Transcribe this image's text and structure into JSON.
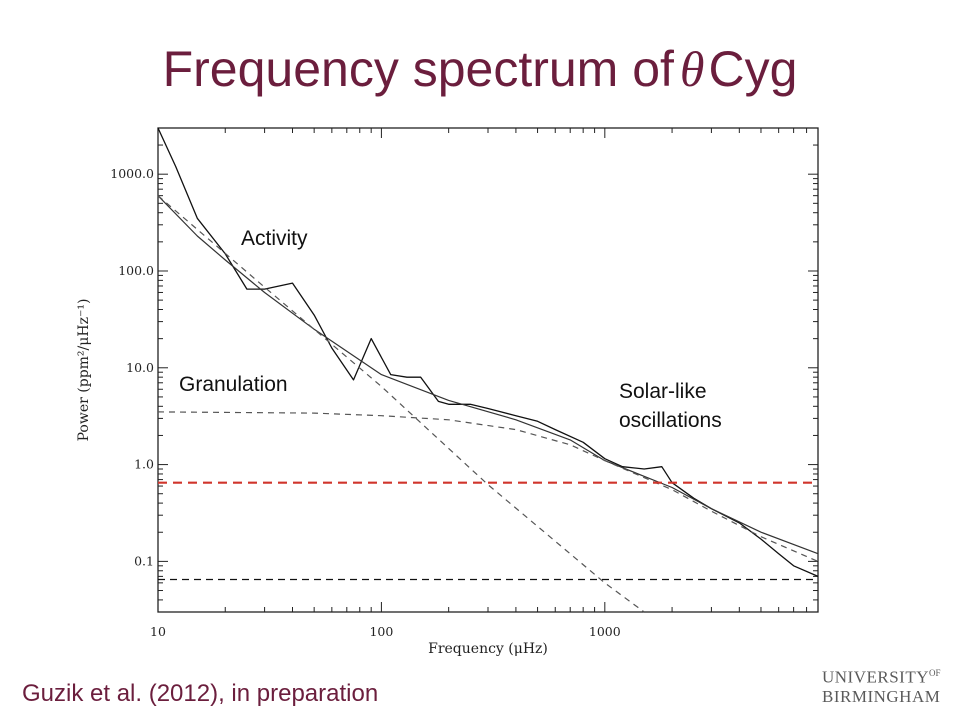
{
  "slide": {
    "title_prefix": "Frequency spectrum of",
    "title_symbol": "θ",
    "title_suffix": "Cyg",
    "citation": "Guzik et al. (2012), in preparation",
    "logo": {
      "line1": "UNIVERSITY",
      "of": "OF",
      "line2": "BIRMINGHAM"
    }
  },
  "chart_data": {
    "type": "line",
    "xlabel": "Frequency (μHz)",
    "ylabel": "Power (ppm²/μHz⁻¹)",
    "xscale": "log",
    "yscale": "log",
    "xlim": [
      10,
      9000
    ],
    "ylim": [
      0.03,
      3000
    ],
    "x_ticks": [
      "10",
      "100",
      "1000"
    ],
    "y_ticks": [
      "1000.0",
      "100.0",
      "10.0",
      "1.0",
      "0.1"
    ],
    "x_tick_values": [
      10,
      100,
      1000
    ],
    "y_tick_values": [
      1000,
      100,
      10,
      1,
      0.1
    ],
    "annotations": [
      "Activity",
      "Granulation",
      "Solar-like",
      "oscillations"
    ],
    "colors": {
      "title": "#6b1e3d",
      "threshold": "#d0352b",
      "axis": "#222222"
    },
    "series": [
      {
        "style": "data",
        "x": [
          10,
          12,
          15,
          20,
          25,
          30,
          40,
          50,
          60,
          75,
          90,
          110,
          130,
          150,
          180,
          200,
          250,
          300,
          400,
          500,
          600,
          800,
          1000,
          1200,
          1500,
          1800,
          2000,
          2500,
          3000,
          4000,
          5000,
          6000,
          7000,
          9000
        ],
        "y": [
          3000,
          1200,
          350,
          150,
          65,
          65,
          75,
          35,
          16,
          7.5,
          20,
          8.5,
          8,
          8,
          4.5,
          4.2,
          4.2,
          3.8,
          3.2,
          2.8,
          2.3,
          1.7,
          1.15,
          0.95,
          0.9,
          0.95,
          0.65,
          0.45,
          0.35,
          0.25,
          0.17,
          0.12,
          0.09,
          0.07
        ]
      },
      {
        "style": "fit-total",
        "x": [
          10,
          15,
          20,
          30,
          50,
          100,
          200,
          400,
          700,
          1000,
          2000,
          3000,
          5000,
          9000
        ],
        "y": [
          600,
          230,
          130,
          60,
          25,
          8.5,
          4.6,
          2.9,
          1.8,
          1.1,
          0.58,
          0.35,
          0.2,
          0.12
        ]
      },
      {
        "style": "fit-activity",
        "x": [
          10,
          30,
          100,
          300,
          1000,
          1500
        ],
        "y": [
          600,
          68,
          6.4,
          0.62,
          0.06,
          0.025
        ]
      },
      {
        "style": "fit-granulation",
        "x": [
          10,
          50,
          100,
          200,
          400,
          700,
          1000,
          2000,
          3000,
          5000,
          9000
        ],
        "y": [
          3.5,
          3.4,
          3.2,
          2.9,
          2.3,
          1.6,
          1.1,
          0.55,
          0.33,
          0.18,
          0.1
        ]
      },
      {
        "style": "noise-floor",
        "x": [
          10,
          9000
        ],
        "y": [
          0.065,
          0.065
        ]
      },
      {
        "style": "threshold",
        "x": [
          10,
          9000
        ],
        "y": [
          0.65,
          0.65
        ]
      }
    ]
  }
}
